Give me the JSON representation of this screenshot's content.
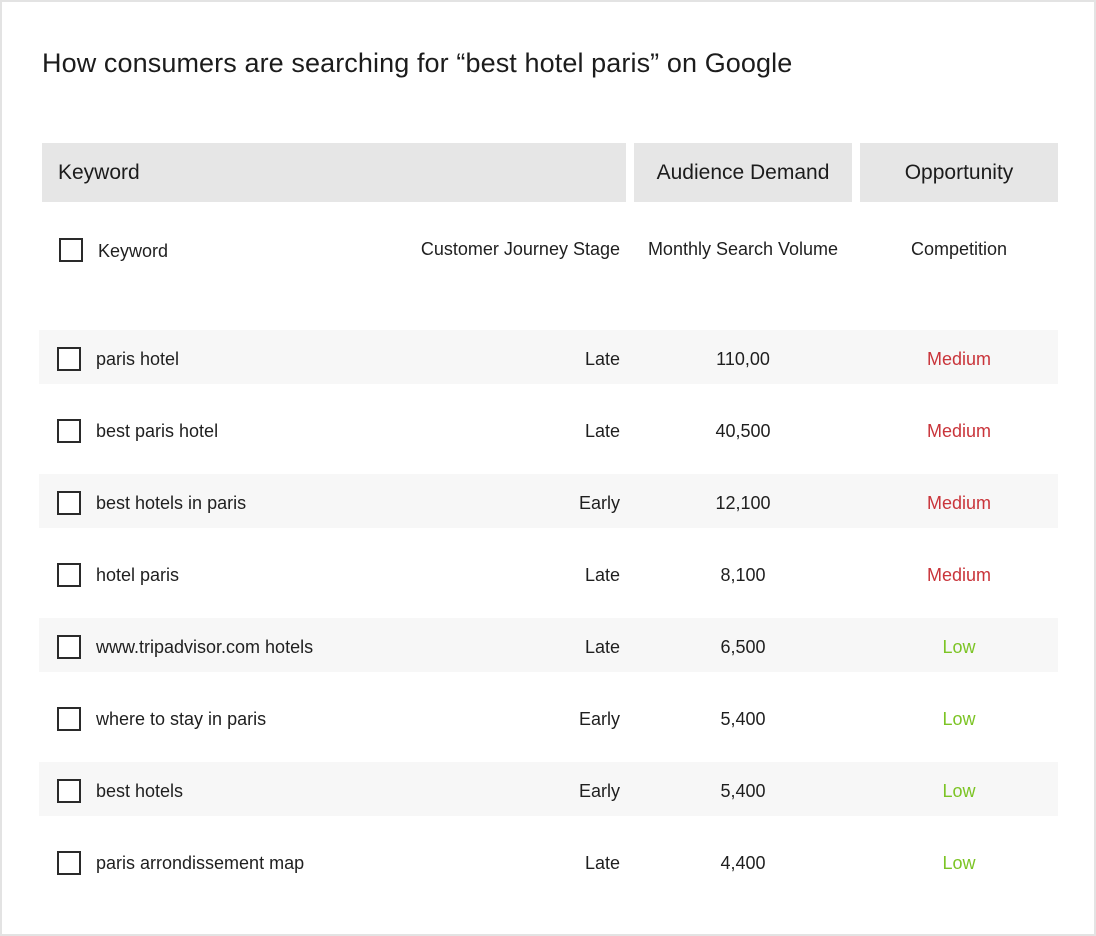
{
  "title": "How consumers are searching for “best hotel paris” on Google",
  "group_headers": {
    "keyword": "Keyword",
    "audience_demand": "Audience Demand",
    "opportunity": "Opportunity"
  },
  "columns": {
    "keyword": "Keyword",
    "stage": "Customer Journey Stage",
    "volume": "Monthly Search Volume",
    "competition": "Competition"
  },
  "colors": {
    "medium": "#c9343a",
    "low": "#7cc425",
    "header_bg": "#e6e6e6"
  },
  "rows": [
    {
      "keyword": "paris hotel",
      "stage": "Late",
      "volume": "110,00",
      "competition": "Medium",
      "level": "medium"
    },
    {
      "keyword": "best paris hotel",
      "stage": "Late",
      "volume": "40,500",
      "competition": "Medium",
      "level": "medium"
    },
    {
      "keyword": "best hotels in paris",
      "stage": "Early",
      "volume": "12,100",
      "competition": "Medium",
      "level": "medium"
    },
    {
      "keyword": "hotel paris",
      "stage": "Late",
      "volume": "8,100",
      "competition": "Medium",
      "level": "medium"
    },
    {
      "keyword": "www.tripadvisor.com hotels",
      "stage": "Late",
      "volume": "6,500",
      "competition": "Low",
      "level": "low"
    },
    {
      "keyword": "where to stay in paris",
      "stage": "Early",
      "volume": "5,400",
      "competition": "Low",
      "level": "low"
    },
    {
      "keyword": "best hotels",
      "stage": "Early",
      "volume": "5,400",
      "competition": "Low",
      "level": "low"
    },
    {
      "keyword": "paris arrondissement map",
      "stage": "Late",
      "volume": "4,400",
      "competition": "Low",
      "level": "low"
    }
  ]
}
